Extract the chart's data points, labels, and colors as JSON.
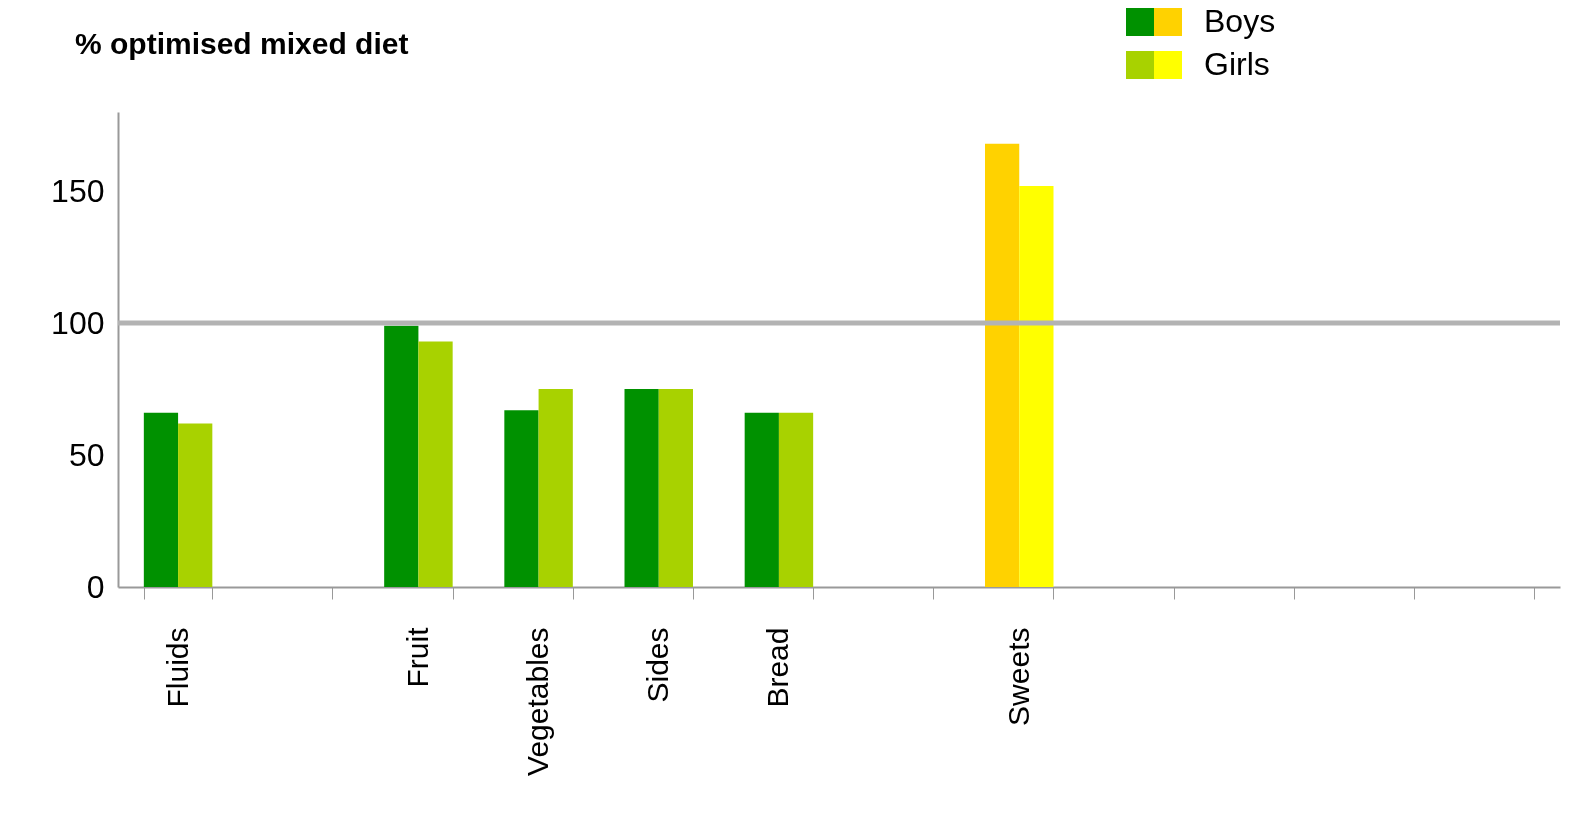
{
  "chart_data": {
    "type": "bar",
    "title": "% optimised mixed diet",
    "categories": [
      "Fluids",
      null,
      "Fruit",
      "Vegetables",
      "Sides",
      "Bread",
      null,
      "Sweets",
      null,
      null,
      null,
      null
    ],
    "series": [
      {
        "name": "Boys",
        "color": "#009100",
        "colors": [
          "#009100",
          "#009100",
          "#009100",
          "#009100",
          "#009100",
          "#009100",
          "#009100",
          "#ffd200",
          "#009100",
          "#009100",
          "#009100",
          "#009100"
        ],
        "values": [
          66,
          null,
          99,
          67,
          75,
          66,
          null,
          168,
          null,
          null,
          null,
          null
        ]
      },
      {
        "name": "Girls",
        "color": "#a8d200",
        "colors": [
          "#a8d200",
          "#a8d200",
          "#a8d200",
          "#a8d200",
          "#a8d200",
          "#a8d200",
          "#a8d200",
          "#ffff00",
          "#a8d200",
          "#a8d200",
          "#a8d200",
          "#a8d200"
        ],
        "values": [
          62,
          null,
          93,
          75,
          75,
          66,
          null,
          152,
          null,
          null,
          null,
          null
        ]
      }
    ],
    "ylim": [
      0,
      180
    ],
    "yticks": [
      0,
      50,
      100,
      150
    ],
    "ref_lines": [
      {
        "axis": "y",
        "value": 100,
        "color": "#b3b3b3"
      }
    ],
    "grid": false,
    "legend": "top right"
  }
}
